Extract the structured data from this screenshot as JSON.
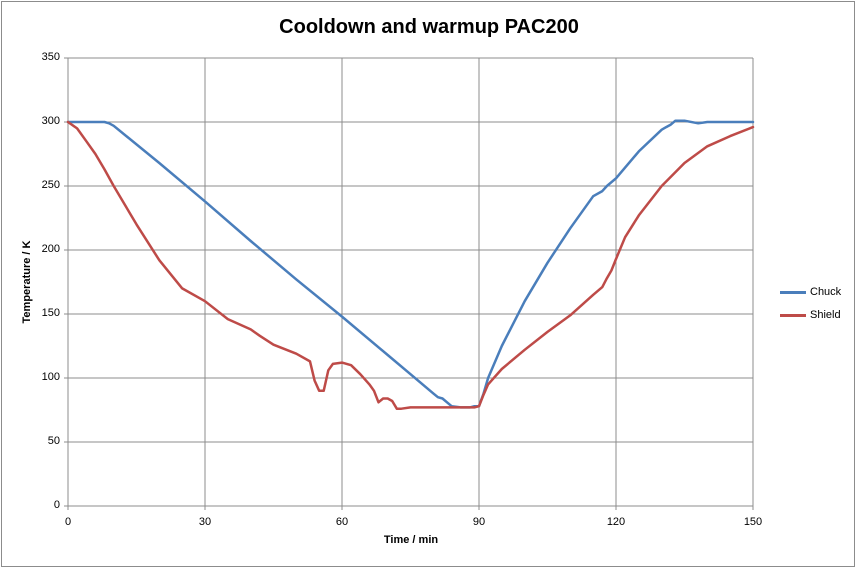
{
  "chart_data": {
    "type": "line",
    "title": "Cooldown and warmup PAC200",
    "xlabel": "Time / min",
    "ylabel": "Temperature / K",
    "xlim": [
      0,
      150
    ],
    "ylim": [
      0,
      350
    ],
    "xticks": [
      0,
      30,
      60,
      90,
      120,
      150
    ],
    "yticks": [
      0,
      50,
      100,
      150,
      200,
      250,
      300,
      350
    ],
    "xtick_labels": [
      "0",
      "30",
      "60",
      "90",
      "120",
      "150"
    ],
    "ytick_labels": [
      "0",
      "50",
      "100",
      "150",
      "200",
      "250",
      "300",
      "350"
    ],
    "grid": true,
    "legend_position": "right",
    "series": [
      {
        "name": "Chuck",
        "color": "#4a7ebb",
        "x": [
          0,
          2,
          5,
          8,
          9,
          10,
          20,
          30,
          40,
          50,
          60,
          70,
          75,
          80,
          81,
          82,
          83,
          84,
          86,
          88,
          89,
          90,
          91,
          92,
          95,
          100,
          105,
          110,
          115,
          117,
          118,
          120,
          125,
          130,
          131,
          132,
          133,
          135,
          138,
          140,
          145,
          150
        ],
        "y": [
          300,
          300,
          300,
          300,
          299,
          297,
          268,
          238,
          207,
          177,
          148,
          118,
          103,
          88,
          85,
          84,
          81,
          78,
          77,
          77,
          78,
          78,
          88,
          100,
          125,
          160,
          190,
          217,
          242,
          246,
          250,
          256,
          277,
          294,
          296,
          298,
          301,
          301,
          299,
          300,
          300,
          300
        ]
      },
      {
        "name": "Shield",
        "color": "#be4b48",
        "x": [
          0,
          2,
          4,
          6,
          8,
          10,
          15,
          20,
          25,
          30,
          35,
          40,
          42,
          45,
          50,
          53,
          54,
          55,
          56,
          57,
          58,
          60,
          62,
          64,
          66,
          67,
          68,
          69,
          70,
          71,
          72,
          73,
          75,
          80,
          85,
          88,
          89,
          90,
          91,
          92,
          95,
          100,
          105,
          110,
          115,
          117,
          118,
          119,
          120,
          122,
          125,
          130,
          135,
          140,
          145,
          150
        ],
        "y": [
          300,
          295,
          285,
          275,
          263,
          250,
          220,
          192,
          170,
          160,
          146,
          138,
          133,
          126,
          119,
          113,
          98,
          90,
          90,
          106,
          111,
          112,
          110,
          103,
          95,
          90,
          81,
          84,
          84,
          82,
          76,
          76,
          77,
          77,
          77,
          77,
          77,
          78,
          87,
          95,
          107,
          122,
          136,
          149,
          165,
          171,
          178,
          184,
          193,
          210,
          227,
          250,
          268,
          281,
          289,
          296
        ]
      }
    ]
  }
}
